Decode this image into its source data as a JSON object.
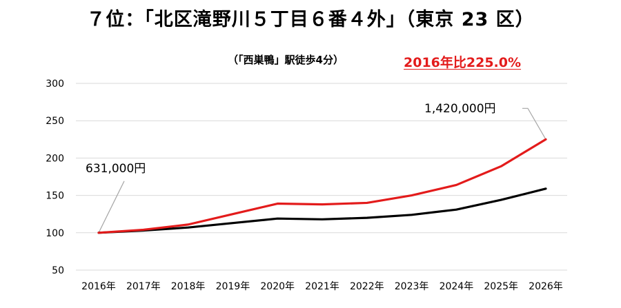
{
  "chart_data": {
    "type": "line",
    "title": "７位：「北区滝野川５丁目６番４外」（東京 23 区）",
    "subtitle": "（「西巣鴨」駅徒歩4分）",
    "highlight": "2016年比225.0%",
    "categories": [
      "2016年",
      "2017年",
      "2018年",
      "2019年",
      "2020年",
      "2021年",
      "2022年",
      "2023年",
      "2024年",
      "2025年",
      "2026年"
    ],
    "series": [
      {
        "values": [
          100,
          104,
          111,
          125,
          139,
          138,
          140,
          150,
          164,
          189,
          225
        ],
        "color": "#e31b1b"
      },
      {
        "values": [
          100,
          103,
          107,
          113,
          119,
          118,
          120,
          124,
          131,
          144,
          159
        ],
        "color": "#000000"
      }
    ],
    "ylim": [
      50,
      300
    ],
    "yticks": [
      50,
      100,
      150,
      200,
      250,
      300
    ],
    "grid": true,
    "annotations": [
      {
        "text": "631,000円",
        "category": "2016年",
        "value": 100
      },
      {
        "text": "1,420,000円",
        "category": "2026年",
        "value": 225
      }
    ]
  }
}
